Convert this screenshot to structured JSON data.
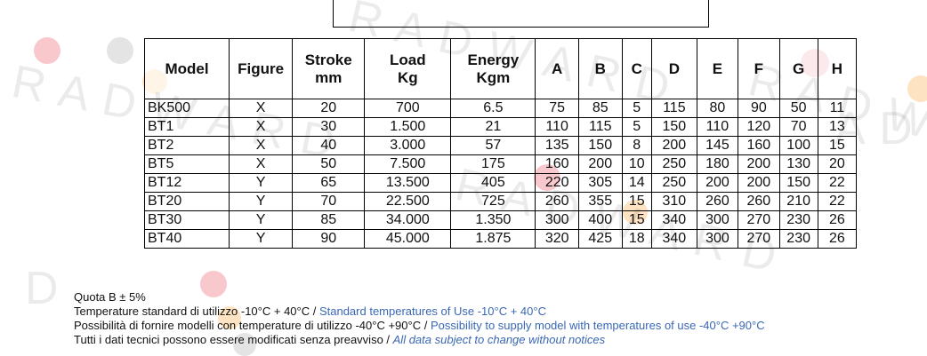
{
  "table": {
    "headers": [
      {
        "line1": "Model",
        "line2": ""
      },
      {
        "line1": "Figure",
        "line2": ""
      },
      {
        "line1": "Stroke",
        "line2": "mm"
      },
      {
        "line1": "Load",
        "line2": "Kg"
      },
      {
        "line1": "Energy",
        "line2": "Kgm"
      },
      {
        "line1": "A",
        "line2": ""
      },
      {
        "line1": "B",
        "line2": ""
      },
      {
        "line1": "C",
        "line2": ""
      },
      {
        "line1": "D",
        "line2": ""
      },
      {
        "line1": "E",
        "line2": ""
      },
      {
        "line1": "F",
        "line2": ""
      },
      {
        "line1": "G",
        "line2": ""
      },
      {
        "line1": "H",
        "line2": ""
      }
    ],
    "rows": [
      [
        "BK500",
        "X",
        "20",
        "700",
        "6.5",
        "75",
        "85",
        "5",
        "115",
        "80",
        "90",
        "50",
        "11"
      ],
      [
        "BT1",
        "X",
        "30",
        "1.500",
        "21",
        "110",
        "115",
        "5",
        "150",
        "110",
        "120",
        "70",
        "13"
      ],
      [
        "BT2",
        "X",
        "40",
        "3.000",
        "57",
        "135",
        "150",
        "8",
        "200",
        "145",
        "160",
        "100",
        "15"
      ],
      [
        "BT5",
        "X",
        "50",
        "7.500",
        "175",
        "160",
        "200",
        "10",
        "250",
        "180",
        "200",
        "130",
        "20"
      ],
      [
        "BT12",
        "Y",
        "65",
        "13.500",
        "405",
        "220",
        "305",
        "14",
        "250",
        "200",
        "200",
        "150",
        "22"
      ],
      [
        "BT20",
        "Y",
        "70",
        "22.500",
        "725",
        "260",
        "355",
        "15",
        "310",
        "260",
        "260",
        "210",
        "22"
      ],
      [
        "BT30",
        "Y",
        "85",
        "34.000",
        "1.350",
        "300",
        "400",
        "15",
        "340",
        "300",
        "270",
        "230",
        "26"
      ],
      [
        "BT40",
        "Y",
        "90",
        "45.000",
        "1.875",
        "320",
        "425",
        "18",
        "340",
        "300",
        "270",
        "230",
        "26"
      ]
    ]
  },
  "notes": {
    "line1": "Quota B ± 5%",
    "line2_it": "Temperature standard di utilizzo -10°C + 40°C / ",
    "line2_en": "Standard temperatures of Use -10°C + 40°C",
    "line3_it": "Possibilità di fornire modelli con temperature di utilizzo -40°C +90°C / ",
    "line3_en": "Possibility to supply model with temperatures of use -40°C +90°C",
    "line4_it": "Tutti i dati tecnici possono essere modificati senza preavviso / ",
    "line4_en": "All data subject to change without notices"
  },
  "watermark": {
    "w1": "R A D W A R D",
    "w2": "R A D W A R D",
    "w3": "R A D W A R D",
    "w4": "R A D W A R D",
    "w5": "D",
    "w6": "A D"
  },
  "colors": {
    "dot_red": "#f8c8cc",
    "dot_orange": "#fde3c2",
    "dot_grey": "#e4e4e4",
    "note_blue": "#3a67b5"
  }
}
